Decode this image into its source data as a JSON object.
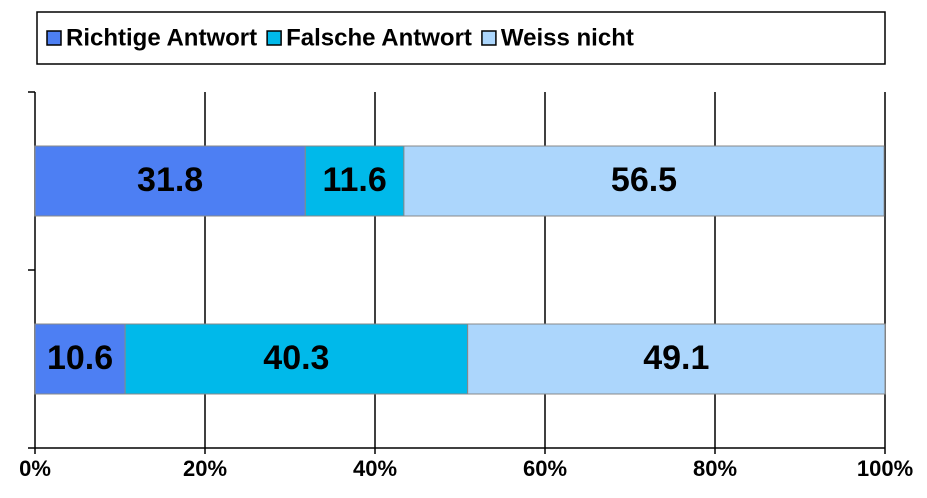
{
  "chart_data": {
    "type": "stacked_bar_horizontal",
    "categories": [
      null,
      null
    ],
    "series": [
      {
        "name": "Richtige Antwort",
        "color": "#4d7ff3",
        "values": [
          31.8,
          10.6
        ]
      },
      {
        "name": "Falsche Antwort",
        "color": "#00b9ea",
        "values": [
          11.6,
          40.3
        ]
      },
      {
        "name": "Weiss nicht",
        "color": "#acd6fc",
        "values": [
          56.5,
          49.1
        ]
      }
    ],
    "xlim": [
      0,
      100
    ],
    "xticks": [
      {
        "value": 0,
        "label": "0%"
      },
      {
        "value": 20,
        "label": "20%"
      },
      {
        "value": 40,
        "label": "40%"
      },
      {
        "value": 60,
        "label": "60%"
      },
      {
        "value": 80,
        "label": "80%"
      },
      {
        "value": 100,
        "label": "100%"
      }
    ],
    "grid": true,
    "legend": "top"
  }
}
